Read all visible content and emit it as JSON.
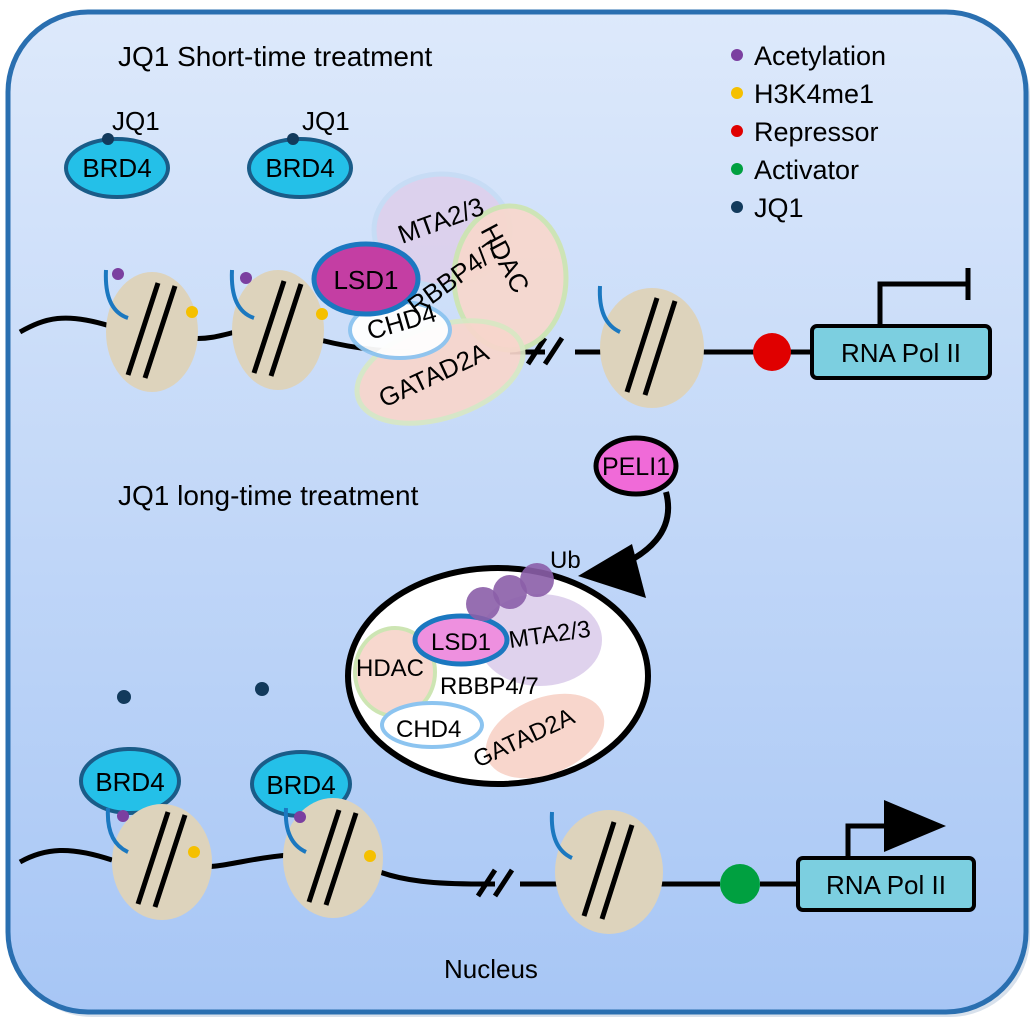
{
  "titles": {
    "short": "JQ1 Short-time treatment",
    "long": "JQ1 long-time treatment",
    "nucleus": "Nucleus"
  },
  "legend": [
    {
      "label": "Acetylation",
      "color": "#7b3fa0"
    },
    {
      "label": "H3K4me1",
      "color": "#f5c000"
    },
    {
      "label": "Repressor",
      "color": "#e00000"
    },
    {
      "label": "Activator",
      "color": "#00a040"
    },
    {
      "label": "JQ1",
      "color": "#123a5c"
    }
  ],
  "labels": {
    "jq1": "JQ1",
    "brd4": "BRD4",
    "lsd1": "LSD1",
    "mta": "MTA2/3",
    "hdac": "HDAC",
    "rbbp": "RBBP4/7",
    "chd4": "CHD4",
    "gatad": "GATAD2A",
    "rna_pol": "RNA  Pol II",
    "peli1": "PELI1",
    "ub": "Ub"
  },
  "colors": {
    "nucleus_top": "#dde9fb",
    "nucleus_bottom": "#a7c6f5",
    "nucleus_border": "#2a6fb0",
    "brd4_fill": "#24c0e8",
    "nucleosome": "#ddd3bc",
    "lsd1_dark": "#c43ea3",
    "lsd1_light": "#ee90df",
    "peli1": "#f06ad8",
    "rna_pol": "#7ccfe0"
  }
}
